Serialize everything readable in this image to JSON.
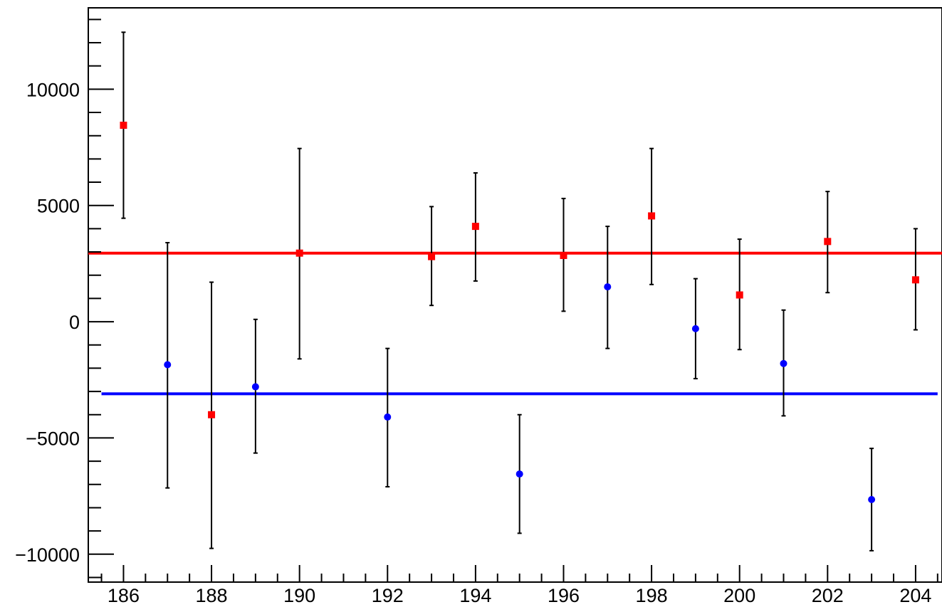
{
  "chart_data": {
    "type": "scatter",
    "title": "",
    "xlabel": "",
    "ylabel": "",
    "xlim": [
      185.2,
      204.6
    ],
    "ylim": [
      -11200,
      13500
    ],
    "x_major_ticks": [
      186,
      188,
      190,
      192,
      194,
      196,
      198,
      200,
      202,
      204
    ],
    "x_tick_labels": [
      "186",
      "188",
      "190",
      "192",
      "194",
      "196",
      "198",
      "200",
      "202",
      "204"
    ],
    "y_major_ticks": [
      -10000,
      -5000,
      0,
      5000,
      10000
    ],
    "y_tick_labels": [
      "−10000",
      "−5000",
      "0",
      "5000",
      "10000"
    ],
    "grid": false,
    "legend": "none",
    "series": [
      {
        "color": "#ff0000",
        "marker": "square",
        "points": [
          {
            "x": 186,
            "y": 8450,
            "ylow": 4450,
            "yhigh": 12450
          },
          {
            "x": 188,
            "y": -4000,
            "ylow": -9750,
            "yhigh": 1700
          },
          {
            "x": 190,
            "y": 2950,
            "ylow": -1600,
            "yhigh": 7450
          },
          {
            "x": 193,
            "y": 2800,
            "ylow": 700,
            "yhigh": 4950
          },
          {
            "x": 194,
            "y": 4100,
            "ylow": 1750,
            "yhigh": 6400
          },
          {
            "x": 196,
            "y": 2850,
            "ylow": 450,
            "yhigh": 5300
          },
          {
            "x": 198,
            "y": 4550,
            "ylow": 1600,
            "yhigh": 7450
          },
          {
            "x": 200,
            "y": 1150,
            "ylow": -1200,
            "yhigh": 3550
          },
          {
            "x": 202,
            "y": 3450,
            "ylow": 1250,
            "yhigh": 5600
          },
          {
            "x": 204,
            "y": 1800,
            "ylow": -350,
            "yhigh": 4000
          }
        ]
      },
      {
        "color": "#0000ff",
        "marker": "circle",
        "points": [
          {
            "x": 187,
            "y": -1850,
            "ylow": -7150,
            "yhigh": 3400
          },
          {
            "x": 189,
            "y": -2800,
            "ylow": -5650,
            "yhigh": 100
          },
          {
            "x": 192,
            "y": -4100,
            "ylow": -7100,
            "yhigh": -1150
          },
          {
            "x": 195,
            "y": -6550,
            "ylow": -9100,
            "yhigh": -4000
          },
          {
            "x": 197,
            "y": 1500,
            "ylow": -1150,
            "yhigh": 4100
          },
          {
            "x": 199,
            "y": -300,
            "ylow": -2450,
            "yhigh": 1850
          },
          {
            "x": 201,
            "y": -1800,
            "ylow": -4050,
            "yhigh": 500
          },
          {
            "x": 203,
            "y": -7650,
            "ylow": -9850,
            "yhigh": -5450
          }
        ]
      }
    ],
    "reference_lines": [
      {
        "color": "#ff0000",
        "y": 2950,
        "x_from": 185.2,
        "x_to": 204.6
      },
      {
        "color": "#0000ff",
        "y": -3100,
        "x_from": 185.5,
        "x_to": 204.5
      }
    ]
  }
}
